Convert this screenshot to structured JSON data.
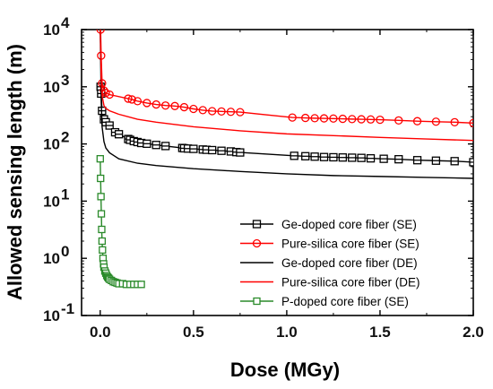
{
  "chart_data": {
    "type": "line",
    "xlabel": "Dose (MGy)",
    "ylabel": "Allowed sensing length (m)",
    "xlim": [
      -0.1,
      2.0
    ],
    "ylim": [
      0.1,
      10000
    ],
    "y_scale": "log",
    "grid": false,
    "legend_placement": "bottom-right",
    "x_ticks": [
      "0.0",
      "0.5",
      "1.0",
      "1.5",
      "2.0"
    ],
    "y_ticks": [
      {
        "base": "10",
        "exp": "-1",
        "value": 0.1
      },
      {
        "base": "10",
        "exp": "0",
        "value": 1
      },
      {
        "base": "10",
        "exp": "1",
        "value": 10
      },
      {
        "base": "10",
        "exp": "2",
        "value": 100
      },
      {
        "base": "10",
        "exp": "3",
        "value": 1000
      },
      {
        "base": "10",
        "exp": "4",
        "value": 10000
      }
    ],
    "series": [
      {
        "name": "Ge-doped core fiber (SE)",
        "color": "#000000",
        "style": "solid",
        "marker": "square-crossed",
        "x": [
          0.002,
          0.005,
          0.01,
          0.02,
          0.03,
          0.05,
          0.08,
          0.1,
          0.15,
          0.16,
          0.18,
          0.2,
          0.22,
          0.25,
          0.3,
          0.35,
          0.44,
          0.45,
          0.47,
          0.5,
          0.55,
          0.57,
          0.6,
          0.65,
          0.7,
          0.73,
          0.75,
          1.04,
          1.1,
          1.15,
          1.2,
          1.25,
          1.3,
          1.35,
          1.4,
          1.45,
          1.52,
          1.6,
          1.7,
          1.8,
          1.9,
          2.0
        ],
        "y": [
          1000,
          760,
          380,
          270,
          240,
          210,
          160,
          148,
          122,
          118,
          112,
          108,
          104,
          101,
          96,
          92,
          85,
          84,
          83,
          82,
          80,
          79,
          78,
          76,
          74,
          72,
          71,
          62,
          61,
          60,
          59,
          58.5,
          58,
          57.5,
          57,
          56,
          55,
          54,
          52,
          51,
          50,
          48
        ]
      },
      {
        "name": "Pure-silica core fiber (SE)",
        "color": "#ff0000",
        "style": "solid",
        "marker": "circle",
        "x": [
          0.002,
          0.005,
          0.01,
          0.02,
          0.03,
          0.05,
          0.15,
          0.17,
          0.2,
          0.25,
          0.3,
          0.35,
          0.4,
          0.45,
          0.5,
          0.55,
          0.6,
          0.65,
          0.7,
          0.75,
          1.03,
          1.1,
          1.15,
          1.2,
          1.25,
          1.3,
          1.35,
          1.4,
          1.45,
          1.5,
          1.6,
          1.7,
          1.8,
          1.9,
          2.0
        ],
        "y": [
          10000,
          3500,
          1150,
          860,
          780,
          730,
          620,
          600,
          560,
          520,
          490,
          470,
          460,
          440,
          410,
          390,
          375,
          370,
          365,
          360,
          290,
          285,
          282,
          280,
          278,
          275,
          272,
          270,
          268,
          265,
          258,
          250,
          245,
          240,
          232
        ]
      },
      {
        "name": "Ge-doped core fiber (DE)",
        "color": "#000000",
        "style": "solid",
        "marker": "none",
        "x": [
          0.0,
          0.003,
          0.005,
          0.01,
          0.02,
          0.03,
          0.05,
          0.1,
          0.2,
          0.3,
          0.5,
          0.75,
          1.0,
          1.25,
          1.5,
          1.75,
          2.0
        ],
        "y": [
          10000,
          2000,
          600,
          200,
          110,
          85,
          70,
          55,
          46,
          42,
          37,
          33,
          30,
          28,
          27,
          26,
          25
        ]
      },
      {
        "name": "Pure-silica core fiber (DE)",
        "color": "#ff0000",
        "style": "solid",
        "marker": "none",
        "x": [
          0.0,
          0.003,
          0.005,
          0.01,
          0.02,
          0.03,
          0.05,
          0.1,
          0.2,
          0.3,
          0.5,
          0.75,
          1.0,
          1.25,
          1.5,
          1.75,
          2.0
        ],
        "y": [
          10000,
          4000,
          1500,
          700,
          470,
          420,
          380,
          330,
          270,
          240,
          200,
          170,
          150,
          140,
          130,
          122,
          115
        ]
      },
      {
        "name": "P-doped core fiber (SE)",
        "color": "#2a8a2a",
        "style": "solid",
        "marker": "square-open",
        "x": [
          0.0,
          0.002,
          0.004,
          0.006,
          0.008,
          0.01,
          0.012,
          0.015,
          0.018,
          0.02,
          0.025,
          0.03,
          0.035,
          0.04,
          0.045,
          0.05,
          0.06,
          0.07,
          0.08,
          0.09,
          0.1,
          0.12,
          0.14,
          0.16,
          0.18,
          0.2,
          0.22
        ],
        "y": [
          55,
          25,
          12,
          6,
          3.2,
          2.0,
          1.4,
          1.0,
          0.8,
          0.7,
          0.6,
          0.55,
          0.5,
          0.47,
          0.45,
          0.43,
          0.41,
          0.39,
          0.38,
          0.37,
          0.36,
          0.36,
          0.35,
          0.35,
          0.35,
          0.35,
          0.35
        ]
      }
    ]
  }
}
